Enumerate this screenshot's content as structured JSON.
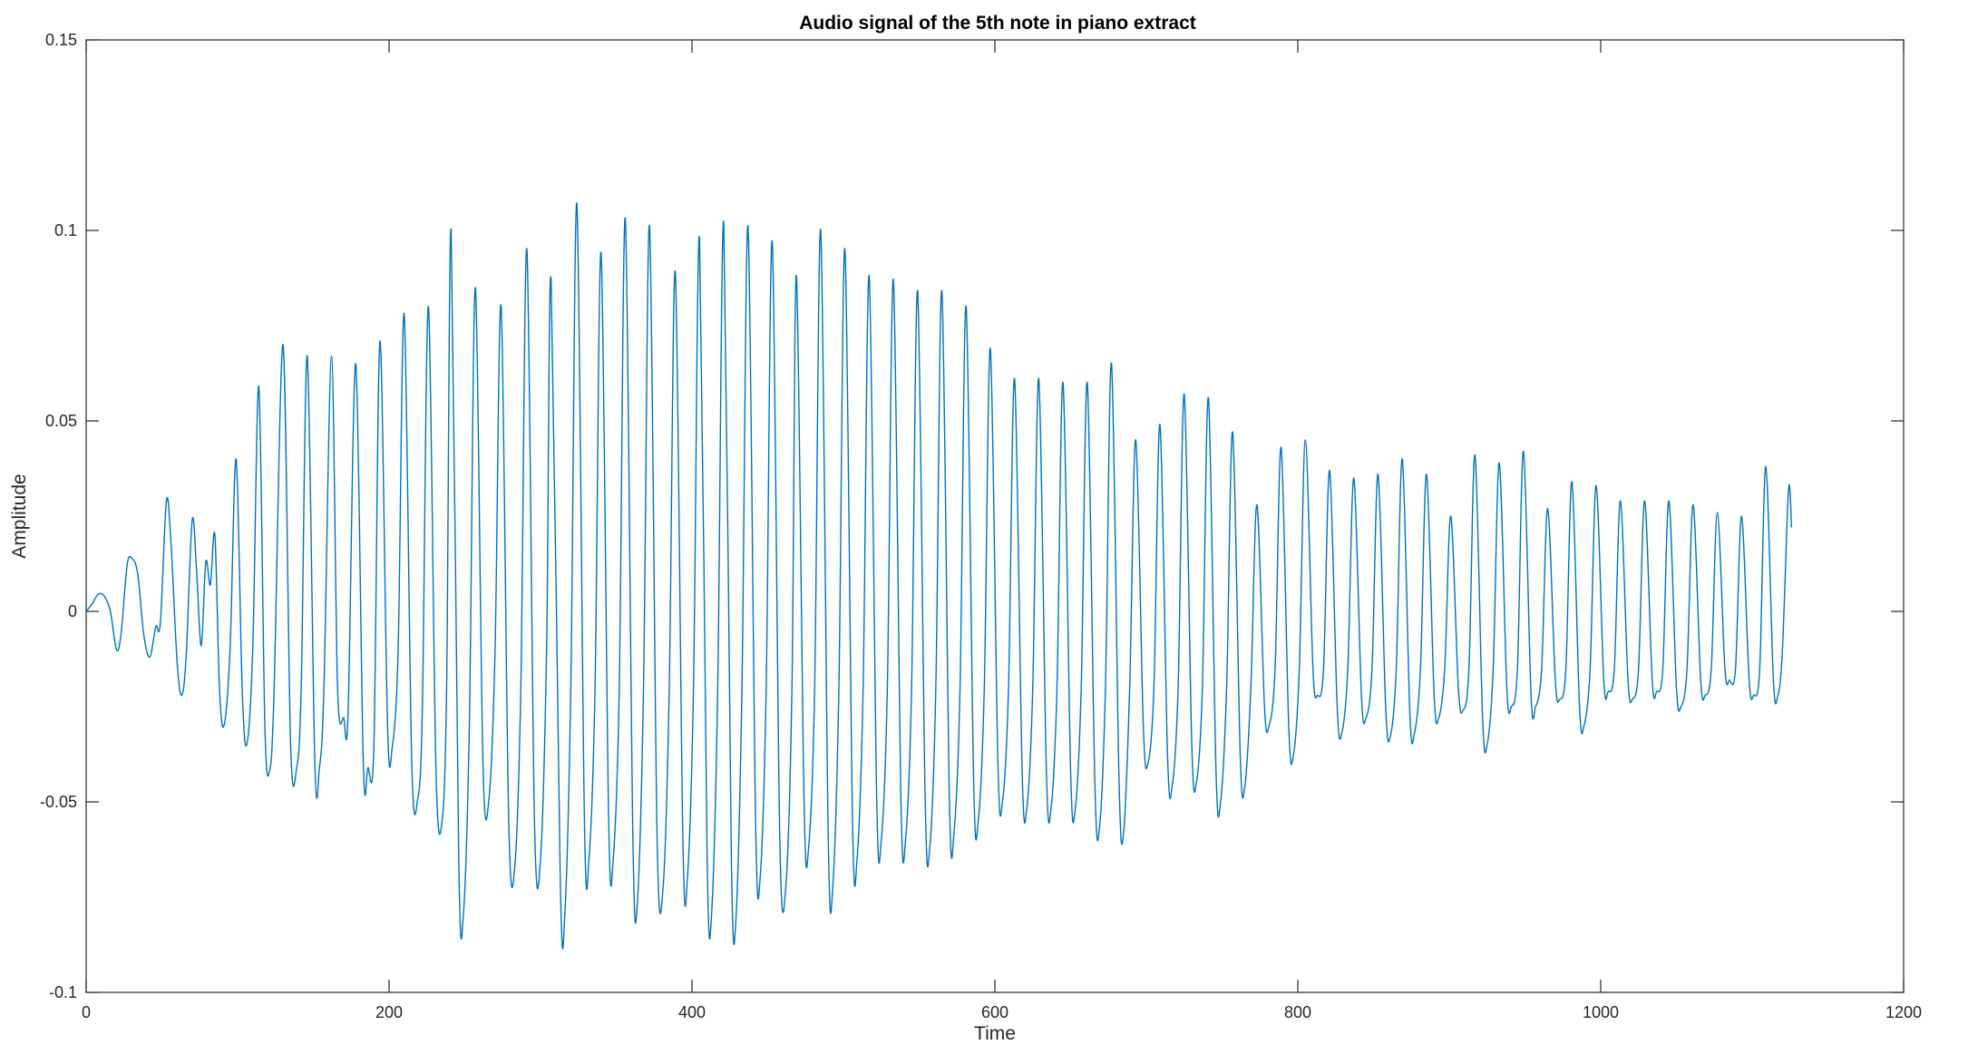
{
  "chart_data": {
    "type": "line",
    "title": "Audio signal of the 5th note in piano extract",
    "xlabel": "Time",
    "ylabel": "Amplitude",
    "xlim": [
      0,
      1200
    ],
    "ylim": [
      -0.1,
      0.15
    ],
    "xticks": [
      0,
      200,
      400,
      600,
      800,
      1000,
      1200
    ],
    "xtick_labels": [
      "0",
      "200",
      "400",
      "600",
      "800",
      "1000",
      "1200"
    ],
    "yticks": [
      -0.1,
      -0.05,
      0,
      0.05,
      0.1,
      0.15
    ],
    "ytick_labels": [
      "-0.1",
      "-0.05",
      "0",
      "0.05",
      "0.1",
      "0.15"
    ],
    "grid": false,
    "line_color": "#0072BD",
    "series": [
      {
        "points": [
          [
            0,
            0.0
          ],
          [
            4,
            0.002
          ],
          [
            8,
            0.0045
          ],
          [
            12,
            0.004
          ],
          [
            16,
            0.0
          ],
          [
            20,
            -0.01
          ],
          [
            23,
            -0.006
          ],
          [
            27,
            0.012
          ],
          [
            30,
            0.014
          ],
          [
            34,
            0.01
          ],
          [
            38,
            -0.006
          ],
          [
            42,
            -0.012
          ],
          [
            46,
            -0.004
          ],
          [
            49,
            -0.003
          ],
          [
            53,
            0.029
          ],
          [
            56,
            0.018
          ],
          [
            60,
            -0.013
          ],
          [
            63,
            -0.022
          ],
          [
            66,
            -0.012
          ],
          [
            70,
            0.024
          ],
          [
            73,
            0.01
          ],
          [
            76,
            -0.009
          ],
          [
            79,
            0.013
          ],
          [
            82,
            0.007
          ],
          [
            85,
            0.02
          ],
          [
            88,
            -0.02
          ],
          [
            91,
            -0.03
          ],
          [
            95,
            -0.01
          ],
          [
            99,
            0.04
          ],
          [
            103,
            -0.02
          ],
          [
            106,
            -0.035
          ],
          [
            110,
            -0.01
          ],
          [
            114,
            0.059
          ],
          [
            118,
            -0.03
          ],
          [
            121,
            -0.042
          ],
          [
            124,
            -0.022
          ],
          [
            130,
            0.07
          ],
          [
            135,
            -0.035
          ],
          [
            139,
            -0.041
          ],
          [
            142,
            -0.02
          ],
          [
            146,
            0.067
          ],
          [
            151,
            -0.04
          ],
          [
            154,
            -0.041
          ],
          [
            157,
            -0.02
          ],
          [
            162,
            0.067
          ],
          [
            166,
            -0.02
          ],
          [
            170,
            -0.028
          ],
          [
            173,
            -0.026
          ],
          [
            178,
            0.065
          ],
          [
            183,
            -0.04
          ],
          [
            186,
            -0.041
          ],
          [
            190,
            -0.035
          ],
          [
            194,
            0.071
          ],
          [
            199,
            -0.03
          ],
          [
            202,
            -0.036
          ],
          [
            206,
            -0.01
          ],
          [
            210,
            0.078
          ],
          [
            215,
            -0.04
          ],
          [
            219,
            -0.049
          ],
          [
            222,
            -0.025
          ],
          [
            226,
            0.08
          ],
          [
            231,
            -0.042
          ],
          [
            235,
            -0.055
          ],
          [
            238,
            -0.02
          ],
          [
            241,
            0.1
          ],
          [
            246,
            -0.065
          ],
          [
            249,
            -0.08
          ],
          [
            253,
            -0.03
          ],
          [
            257,
            0.085
          ],
          [
            262,
            -0.04
          ],
          [
            266,
            -0.049
          ],
          [
            270,
            -0.01
          ],
          [
            274,
            0.08
          ],
          [
            279,
            -0.055
          ],
          [
            283,
            -0.067
          ],
          [
            287,
            -0.02
          ],
          [
            291,
            0.095
          ],
          [
            296,
            -0.055
          ],
          [
            300,
            -0.065
          ],
          [
            304,
            -0.01
          ],
          [
            307,
            0.087
          ],
          [
            313,
            -0.07
          ],
          [
            316,
            -0.08
          ],
          [
            320,
            -0.02
          ],
          [
            324,
            0.107
          ],
          [
            329,
            -0.055
          ],
          [
            332,
            -0.065
          ],
          [
            336,
            -0.02
          ],
          [
            340,
            0.094
          ],
          [
            345,
            -0.055
          ],
          [
            348,
            -0.065
          ],
          [
            352,
            -0.02
          ],
          [
            356,
            0.103
          ],
          [
            361,
            -0.06
          ],
          [
            364,
            -0.076
          ],
          [
            368,
            -0.02
          ],
          [
            372,
            0.101
          ],
          [
            377,
            -0.06
          ],
          [
            381,
            -0.072
          ],
          [
            385,
            -0.02
          ],
          [
            389,
            0.089
          ],
          [
            394,
            -0.06
          ],
          [
            397,
            -0.07
          ],
          [
            401,
            -0.02
          ],
          [
            405,
            0.098
          ],
          [
            410,
            -0.065
          ],
          [
            413,
            -0.079
          ],
          [
            417,
            -0.02
          ],
          [
            421,
            0.102
          ],
          [
            426,
            -0.065
          ],
          [
            429,
            -0.081
          ],
          [
            433,
            -0.02
          ],
          [
            437,
            0.101
          ],
          [
            442,
            -0.055
          ],
          [
            445,
            -0.07
          ],
          [
            449,
            -0.02
          ],
          [
            453,
            0.097
          ],
          [
            458,
            -0.06
          ],
          [
            462,
            -0.072
          ],
          [
            466,
            -0.02
          ],
          [
            469,
            0.088
          ],
          [
            474,
            -0.05
          ],
          [
            477,
            -0.062
          ],
          [
            481,
            -0.02
          ],
          [
            485,
            0.1
          ],
          [
            490,
            -0.06
          ],
          [
            493,
            -0.072
          ],
          [
            497,
            -0.02
          ],
          [
            501,
            0.095
          ],
          [
            506,
            -0.055
          ],
          [
            509,
            -0.065
          ],
          [
            513,
            -0.02
          ],
          [
            517,
            0.088
          ],
          [
            522,
            -0.05
          ],
          [
            525,
            -0.06
          ],
          [
            529,
            -0.02
          ],
          [
            533,
            0.087
          ],
          [
            538,
            -0.05
          ],
          [
            541,
            -0.06
          ],
          [
            545,
            -0.02
          ],
          [
            549,
            0.084
          ],
          [
            554,
            -0.05
          ],
          [
            557,
            -0.062
          ],
          [
            561,
            -0.02
          ],
          [
            565,
            0.084
          ],
          [
            570,
            -0.05
          ],
          [
            573,
            -0.058
          ],
          [
            577,
            -0.02
          ],
          [
            581,
            0.08
          ],
          [
            586,
            -0.045
          ],
          [
            589,
            -0.055
          ],
          [
            593,
            -0.02
          ],
          [
            597,
            0.069
          ],
          [
            602,
            -0.04
          ],
          [
            605,
            -0.05
          ],
          [
            609,
            -0.02
          ],
          [
            613,
            0.061
          ],
          [
            618,
            -0.042
          ],
          [
            621,
            -0.052
          ],
          [
            625,
            -0.02
          ],
          [
            629,
            0.061
          ],
          [
            634,
            -0.042
          ],
          [
            637,
            -0.052
          ],
          [
            641,
            -0.02
          ],
          [
            645,
            0.06
          ],
          [
            650,
            -0.042
          ],
          [
            653,
            -0.052
          ],
          [
            657,
            -0.02
          ],
          [
            661,
            0.06
          ],
          [
            666,
            -0.045
          ],
          [
            669,
            -0.057
          ],
          [
            673,
            -0.02
          ],
          [
            677,
            0.065
          ],
          [
            682,
            -0.045
          ],
          [
            685,
            -0.058
          ],
          [
            689,
            -0.02
          ],
          [
            693,
            0.045
          ],
          [
            698,
            -0.03
          ],
          [
            701,
            -0.04
          ],
          [
            705,
            -0.02
          ],
          [
            709,
            0.049
          ],
          [
            714,
            -0.038
          ],
          [
            717,
            -0.046
          ],
          [
            721,
            -0.02
          ],
          [
            725,
            0.057
          ],
          [
            730,
            -0.035
          ],
          [
            733,
            -0.045
          ],
          [
            737,
            -0.02
          ],
          [
            741,
            0.056
          ],
          [
            746,
            -0.042
          ],
          [
            749,
            -0.05
          ],
          [
            753,
            -0.02
          ],
          [
            757,
            0.047
          ],
          [
            762,
            -0.038
          ],
          [
            765,
            -0.046
          ],
          [
            769,
            -0.02
          ],
          [
            773,
            0.028
          ],
          [
            778,
            -0.025
          ],
          [
            781,
            -0.03
          ],
          [
            785,
            -0.015
          ],
          [
            789,
            0.043
          ],
          [
            794,
            -0.03
          ],
          [
            797,
            -0.038
          ],
          [
            801,
            -0.015
          ],
          [
            805,
            0.045
          ],
          [
            810,
            -0.015
          ],
          [
            813,
            -0.022
          ],
          [
            817,
            -0.015
          ],
          [
            821,
            0.037
          ],
          [
            826,
            -0.025
          ],
          [
            829,
            -0.032
          ],
          [
            833,
            -0.015
          ],
          [
            837,
            0.035
          ],
          [
            842,
            -0.022
          ],
          [
            845,
            -0.028
          ],
          [
            849,
            -0.015
          ],
          [
            853,
            0.036
          ],
          [
            858,
            -0.025
          ],
          [
            861,
            -0.033
          ],
          [
            865,
            -0.015
          ],
          [
            869,
            0.04
          ],
          [
            874,
            -0.027
          ],
          [
            877,
            -0.032
          ],
          [
            881,
            -0.015
          ],
          [
            885,
            0.036
          ],
          [
            890,
            -0.022
          ],
          [
            893,
            -0.028
          ],
          [
            897,
            -0.015
          ],
          [
            901,
            0.025
          ],
          [
            906,
            -0.02
          ],
          [
            909,
            -0.026
          ],
          [
            913,
            -0.015
          ],
          [
            917,
            0.041
          ],
          [
            922,
            -0.028
          ],
          [
            925,
            -0.035
          ],
          [
            929,
            -0.015
          ],
          [
            933,
            0.039
          ],
          [
            938,
            -0.02
          ],
          [
            941,
            -0.025
          ],
          [
            945,
            -0.015
          ],
          [
            949,
            0.042
          ],
          [
            954,
            -0.022
          ],
          [
            957,
            -0.025
          ],
          [
            961,
            -0.015
          ],
          [
            965,
            0.027
          ],
          [
            970,
            -0.018
          ],
          [
            973,
            -0.023
          ],
          [
            977,
            -0.015
          ],
          [
            981,
            0.034
          ],
          [
            986,
            -0.025
          ],
          [
            989,
            -0.03
          ],
          [
            993,
            -0.015
          ],
          [
            997,
            0.033
          ],
          [
            1002,
            -0.018
          ],
          [
            1005,
            -0.021
          ],
          [
            1009,
            -0.015
          ],
          [
            1013,
            0.029
          ],
          [
            1018,
            -0.018
          ],
          [
            1021,
            -0.023
          ],
          [
            1025,
            -0.015
          ],
          [
            1029,
            0.029
          ],
          [
            1034,
            -0.018
          ],
          [
            1037,
            -0.021
          ],
          [
            1041,
            -0.015
          ],
          [
            1045,
            0.029
          ],
          [
            1050,
            -0.02
          ],
          [
            1053,
            -0.025
          ],
          [
            1057,
            -0.015
          ],
          [
            1061,
            0.028
          ],
          [
            1066,
            -0.018
          ],
          [
            1069,
            -0.022
          ],
          [
            1073,
            -0.015
          ],
          [
            1077,
            0.026
          ],
          [
            1082,
            -0.015
          ],
          [
            1085,
            -0.018
          ],
          [
            1089,
            -0.015
          ],
          [
            1093,
            0.025
          ],
          [
            1098,
            -0.018
          ],
          [
            1101,
            -0.022
          ],
          [
            1105,
            -0.015
          ],
          [
            1109,
            0.038
          ],
          [
            1114,
            -0.018
          ],
          [
            1117,
            -0.022
          ],
          [
            1120,
            -0.01
          ],
          [
            1124,
            0.032
          ],
          [
            1126,
            0.022
          ]
        ]
      }
    ]
  }
}
